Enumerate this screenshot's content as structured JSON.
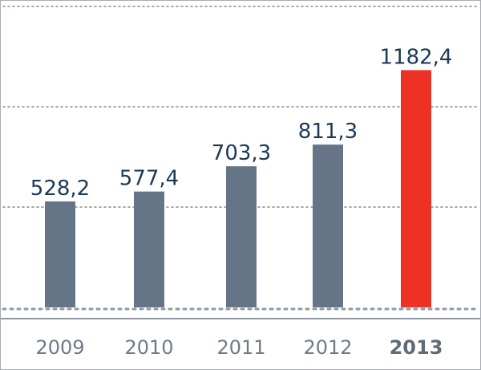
{
  "chart_data": {
    "type": "bar",
    "categories": [
      "2009",
      "2010",
      "2011",
      "2012",
      "2013"
    ],
    "values": [
      528.2,
      577.4,
      703.3,
      811.3,
      1182.4
    ],
    "value_labels": [
      "528,2",
      "577,4",
      "703,3",
      "811,3",
      "1182,4"
    ],
    "highlight_category": "2013",
    "ylim": [
      0,
      1500
    ],
    "grid": true,
    "title": "",
    "xlabel": "",
    "ylabel": "",
    "colors": {
      "bar": "#657486",
      "highlight_bar": "#ee3124",
      "grid": "#8a8a8a",
      "baseline": "#8f98a3",
      "border": "#a7adb5"
    }
  }
}
